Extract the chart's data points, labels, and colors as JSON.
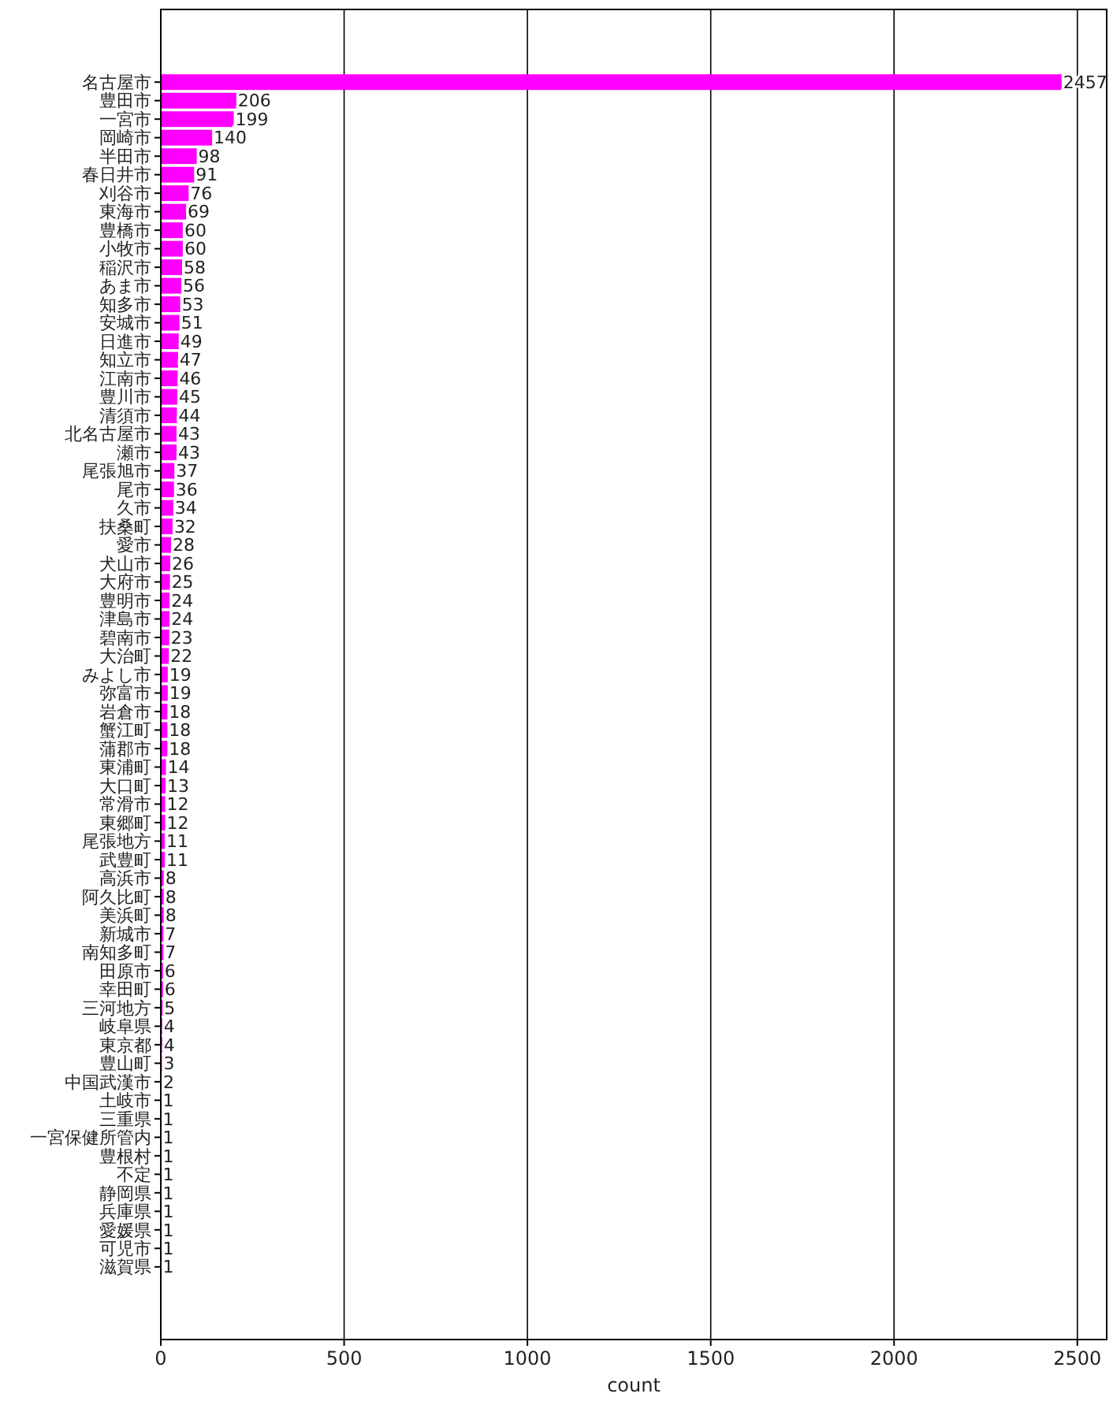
{
  "chart_data": {
    "type": "bar",
    "orientation": "horizontal",
    "xlabel": "count",
    "categories": [
      "名古屋市",
      "豊田市",
      "一宮市",
      "岡崎市",
      "半田市",
      "春日井市",
      "刈谷市",
      "東海市",
      "豊橋市",
      "小牧市",
      "稲沢市",
      "あま市",
      "知多市",
      "安城市",
      "日進市",
      "知立市",
      "江南市",
      "豊川市",
      "清須市",
      "北名古屋市",
      "瀬市",
      "尾張旭市",
      "尾市",
      "久市",
      "扶桑町",
      "愛市",
      "犬山市",
      "大府市",
      "豊明市",
      "津島市",
      "碧南市",
      "大治町",
      "みよし市",
      "弥富市",
      "岩倉市",
      "蟹江町",
      "蒲郡市",
      "東浦町",
      "大口町",
      "常滑市",
      "東郷町",
      "尾張地方",
      "武豊町",
      "高浜市",
      "阿久比町",
      "美浜町",
      "新城市",
      "南知多町",
      "田原市",
      "幸田町",
      "三河地方",
      "岐阜県",
      "東京都",
      "豊山町",
      "中国武漢市",
      "土岐市",
      "三重県",
      "一宮保健所管内",
      "豊根村",
      "不定",
      "静岡県",
      "兵庫県",
      "愛媛県",
      "可児市",
      "滋賀県"
    ],
    "values": [
      2457,
      206,
      199,
      140,
      98,
      91,
      76,
      69,
      60,
      60,
      58,
      56,
      53,
      51,
      49,
      47,
      46,
      45,
      44,
      43,
      43,
      37,
      36,
      34,
      32,
      28,
      26,
      25,
      24,
      24,
      23,
      22,
      19,
      19,
      18,
      18,
      18,
      14,
      13,
      12,
      12,
      11,
      11,
      8,
      8,
      8,
      7,
      7,
      6,
      6,
      5,
      4,
      4,
      3,
      2,
      1,
      1,
      1,
      1,
      1,
      1,
      1,
      1,
      1,
      1
    ],
    "color": "#ff00ff",
    "xlim": [
      0,
      2580
    ],
    "xticks": [
      0,
      500,
      1000,
      1500,
      2000,
      2500
    ],
    "grid": "x",
    "data_labels": true
  }
}
